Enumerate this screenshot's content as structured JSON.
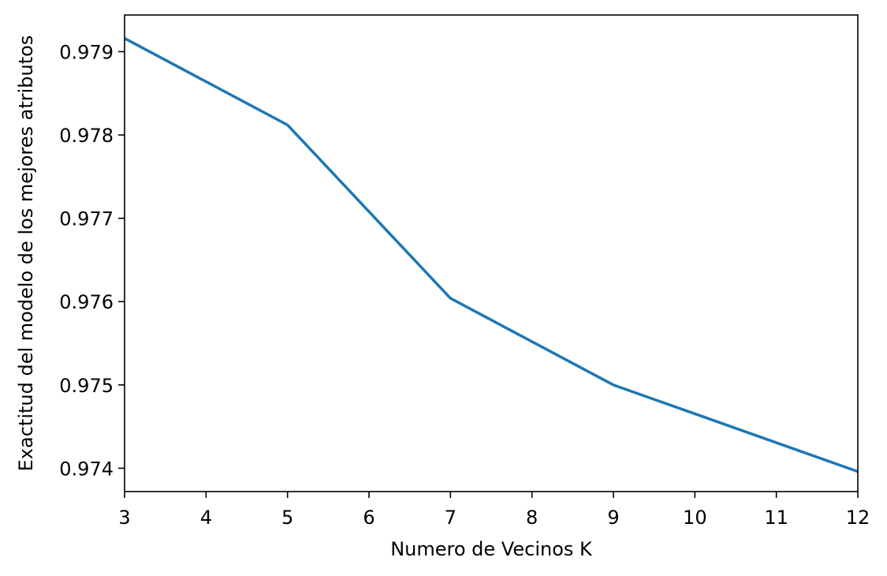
{
  "chart_data": {
    "type": "line",
    "title": "",
    "xlabel": "Numero de Vecinos K",
    "ylabel": "Exactitud del modelo de los mejores atributos",
    "xlim": [
      3,
      12
    ],
    "ylim": [
      0.97372,
      0.97944
    ],
    "x_ticks": [
      "3",
      "4",
      "5",
      "6",
      "7",
      "8",
      "9",
      "10",
      "11",
      "12"
    ],
    "x_tick_values": [
      3,
      4,
      5,
      6,
      7,
      8,
      9,
      10,
      11,
      12
    ],
    "y_ticks": [
      "0.974",
      "0.975",
      "0.976",
      "0.977",
      "0.978",
      "0.979"
    ],
    "y_tick_values": [
      0.974,
      0.975,
      0.976,
      0.977,
      0.978,
      0.979
    ],
    "grid": false,
    "series": [
      {
        "x": [
          3,
          5,
          7,
          9,
          12
        ],
        "values": [
          0.97916,
          0.97812,
          0.97604,
          0.975,
          0.97396
        ],
        "color": "#1f77b4"
      }
    ]
  }
}
